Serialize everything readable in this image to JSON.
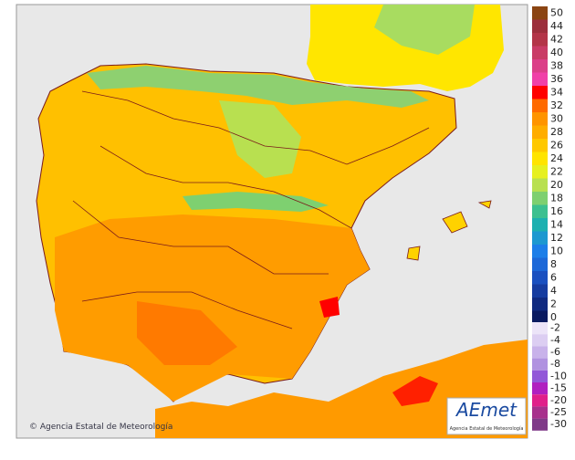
{
  "map": {
    "credit": "© Agencia Estatal de Meteorología",
    "logo": {
      "title": "AEmet",
      "subtitle": "Agencia Estatal de Meteorología"
    },
    "legend": {
      "warm": [
        {
          "value": 50,
          "color": "#8b4513"
        },
        {
          "value": 44,
          "color": "#9c2f3c"
        },
        {
          "value": 42,
          "color": "#b33548"
        },
        {
          "value": 40,
          "color": "#c93c66"
        },
        {
          "value": 38,
          "color": "#db3f88"
        },
        {
          "value": 36,
          "color": "#f040a8"
        },
        {
          "value": 34,
          "color": "#ff0000"
        },
        {
          "value": 32,
          "color": "#ff6a00"
        },
        {
          "value": 30,
          "color": "#ff9400"
        },
        {
          "value": 28,
          "color": "#ffad00"
        },
        {
          "value": 26,
          "color": "#ffc800"
        },
        {
          "value": 24,
          "color": "#ffe400"
        },
        {
          "value": 22,
          "color": "#e6f020"
        },
        {
          "value": 20,
          "color": "#b8e050"
        },
        {
          "value": 18,
          "color": "#7ed070"
        },
        {
          "value": 16,
          "color": "#3cc090"
        },
        {
          "value": 14,
          "color": "#1cb0b0"
        },
        {
          "value": 12,
          "color": "#1c98d0"
        },
        {
          "value": 10,
          "color": "#1c7ee8"
        },
        {
          "value": 8,
          "color": "#1c68d8"
        },
        {
          "value": 6,
          "color": "#1a50c0"
        },
        {
          "value": 4,
          "color": "#163ca0"
        },
        {
          "value": 2,
          "color": "#102a80"
        },
        {
          "value": 0,
          "color": "#0a1a60"
        }
      ],
      "cold": [
        {
          "value": -2,
          "color": "#ece4f8"
        },
        {
          "value": -4,
          "color": "#dccef2"
        },
        {
          "value": -6,
          "color": "#c8b2ea"
        },
        {
          "value": -8,
          "color": "#b092e0"
        },
        {
          "value": -10,
          "color": "#9258d8"
        },
        {
          "value": -15,
          "color": "#b020c0"
        },
        {
          "value": -20,
          "color": "#e0208a"
        },
        {
          "value": -25,
          "color": "#a8308c"
        },
        {
          "value": -30,
          "color": "#803a88"
        }
      ]
    }
  }
}
